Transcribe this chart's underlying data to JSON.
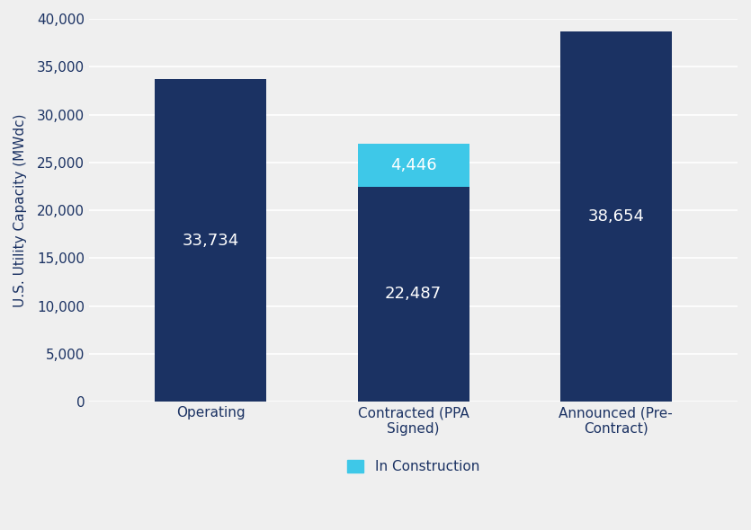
{
  "categories": [
    "Operating",
    "Contracted (PPA\nSigned)",
    "Announced (Pre-\nContract)"
  ],
  "base_values": [
    33734,
    22487,
    38654
  ],
  "construction_values": [
    0,
    4446,
    0
  ],
  "base_labels": [
    "33,734",
    "22,487",
    "38,654"
  ],
  "construction_labels": [
    "",
    "4,446",
    ""
  ],
  "dark_blue": "#1B3263",
  "light_blue": "#3EC8E8",
  "background_color": "#EFEFEF",
  "plot_bg_color": "#EFEFEF",
  "text_color_white": "#FFFFFF",
  "ylabel": "U.S. Utility Capacity (MWdc)",
  "ylim": [
    0,
    40000
  ],
  "yticks": [
    0,
    5000,
    10000,
    15000,
    20000,
    25000,
    30000,
    35000,
    40000
  ],
  "legend_label": "In Construction",
  "bar_width": 0.55,
  "label_fontsize": 13,
  "axis_fontsize": 11,
  "tick_fontsize": 11,
  "tick_color": "#1B3263",
  "label_color": "#1B3263"
}
